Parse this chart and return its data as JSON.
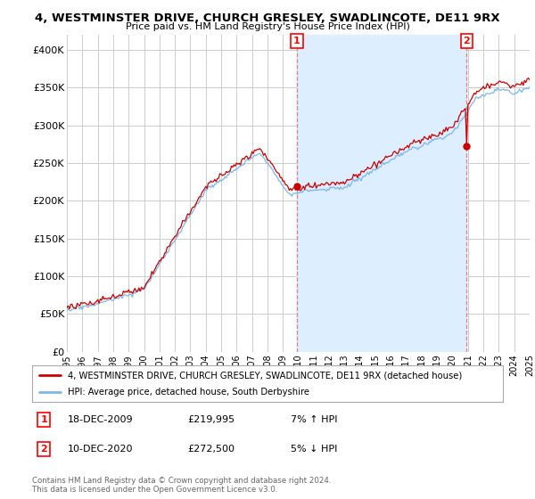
{
  "title": "4, WESTMINSTER DRIVE, CHURCH GRESLEY, SWADLINCOTE, DE11 9RX",
  "subtitle": "Price paid vs. HM Land Registry's House Price Index (HPI)",
  "ylim": [
    0,
    420000
  ],
  "yticks": [
    0,
    50000,
    100000,
    150000,
    200000,
    250000,
    300000,
    350000,
    400000
  ],
  "ytick_labels": [
    "£0",
    "£50K",
    "£100K",
    "£150K",
    "£200K",
    "£250K",
    "£300K",
    "£350K",
    "£400K"
  ],
  "hpi_color": "#7ab8e8",
  "price_color": "#cc0000",
  "vline_color": "#e08080",
  "shade_color": "#dceeff",
  "legend_line1": "4, WESTMINSTER DRIVE, CHURCH GRESLEY, SWADLINCOTE, DE11 9RX (detached house)",
  "legend_line2": "HPI: Average price, detached house, South Derbyshire",
  "footer": "Contains HM Land Registry data © Crown copyright and database right 2024.\nThis data is licensed under the Open Government Licence v3.0.",
  "background_color": "#ffffff",
  "plot_bg_color": "#ffffff",
  "grid_color": "#cccccc",
  "idx1": 179,
  "idx2": 311,
  "price_at_1": 219995,
  "price_at_2": 272500,
  "ann1_date": "18-DEC-2009",
  "ann1_price": "£219,995",
  "ann1_hpi": "7% ↑ HPI",
  "ann2_date": "10-DEC-2020",
  "ann2_price": "£272,500",
  "ann2_hpi": "5% ↓ HPI"
}
